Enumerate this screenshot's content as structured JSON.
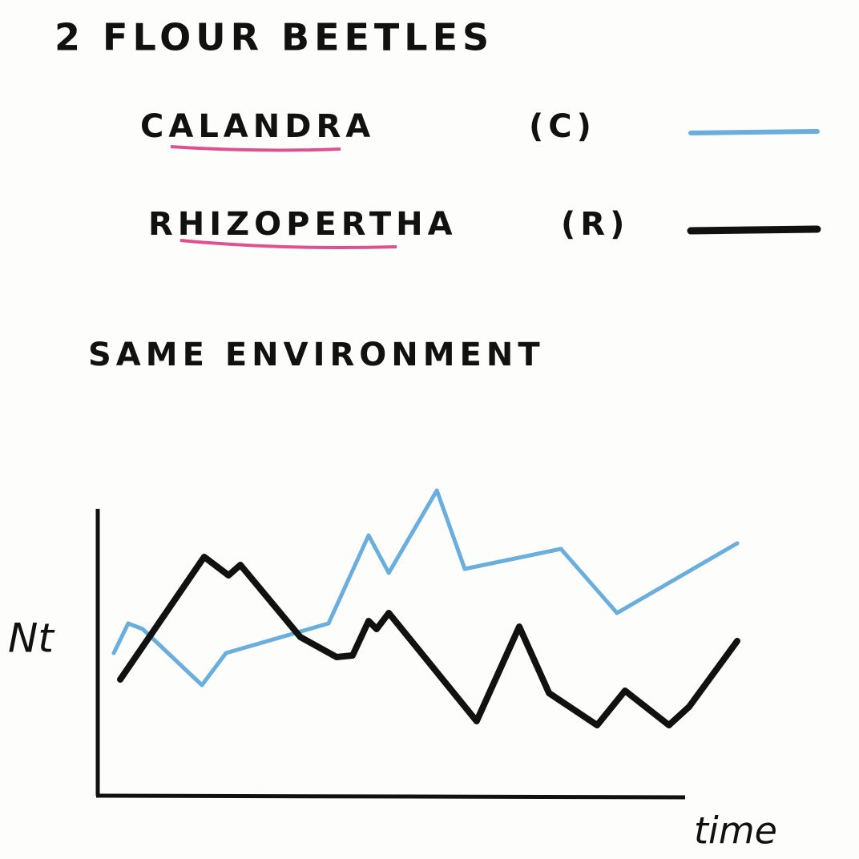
{
  "chart_data": {
    "type": "line",
    "title": "2 FLOUR BEETLES",
    "subtitle": "SAME ENVIRONMENT",
    "y_label": "Nt",
    "x_label": "time",
    "xlim": [
      0,
      100
    ],
    "ylim": [
      0,
      100
    ],
    "series": [
      {
        "name": "CALANDRA",
        "abbr": "(C)",
        "color": "#6aaedd",
        "x": [
          2.5,
          4.75,
          7,
          16.25,
          20,
          36,
          42.25,
          45.4,
          52.9,
          57.25,
          72.25,
          81,
          99.75
        ],
        "values": [
          44.5,
          53.75,
          52,
          34.5,
          44.5,
          53.75,
          81.25,
          69.5,
          95.25,
          70.75,
          77,
          57,
          78.75
        ]
      },
      {
        "name": "RHIZOPERTHA",
        "abbr": "(R)",
        "color": "#111111",
        "x": [
          3.5,
          16.6,
          20.4,
          22.25,
          31.6,
          37.25,
          39.75,
          42.25,
          43.5,
          45.4,
          59.1,
          65.75,
          70.4,
          77.9,
          82.25,
          89.1,
          92.25,
          99.75
        ],
        "values": [
          36.25,
          74.5,
          68.75,
          72,
          49.5,
          43.25,
          43.75,
          54.5,
          52,
          57,
          23.25,
          52.75,
          32,
          22,
          32.75,
          22,
          27.75,
          48.25
        ]
      }
    ]
  }
}
